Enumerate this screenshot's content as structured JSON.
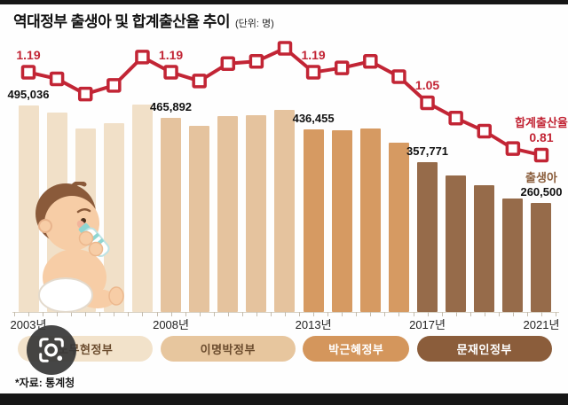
{
  "header": {
    "title": "역대정부 출생아 및 합계출산율 추이",
    "unit_note": "(단위: 명)"
  },
  "chart_data": {
    "type": "bar+line",
    "x": [
      "2003",
      "2004",
      "2005",
      "2006",
      "2007",
      "2008",
      "2009",
      "2010",
      "2011",
      "2012",
      "2013",
      "2014",
      "2015",
      "2016",
      "2017",
      "2018",
      "2019",
      "2020",
      "2021"
    ],
    "series": [
      {
        "name": "출생아",
        "type": "bar",
        "unit": "명",
        "values": [
          495036,
          476958,
          438707,
          451759,
          496822,
          465892,
          444849,
          470171,
          471265,
          484550,
          436455,
          435435,
          438420,
          406243,
          357771,
          326822,
          302676,
          272337,
          260500
        ]
      },
      {
        "name": "합계출산율",
        "type": "line",
        "marker": "open-square",
        "values": [
          1.19,
          1.16,
          1.09,
          1.13,
          1.26,
          1.19,
          1.15,
          1.23,
          1.24,
          1.3,
          1.19,
          1.21,
          1.24,
          1.17,
          1.05,
          0.98,
          0.92,
          0.84,
          0.81
        ]
      }
    ],
    "point_labels": {
      "births": [
        {
          "index": 0,
          "text": "495,036"
        },
        {
          "index": 5,
          "text": "465,892"
        },
        {
          "index": 10,
          "text": "436,455"
        },
        {
          "index": 14,
          "text": "357,771"
        },
        {
          "index": 18,
          "text": "260,500",
          "series_label": "출생아"
        }
      ],
      "rates": [
        {
          "index": 0,
          "text": "1.19"
        },
        {
          "index": 5,
          "text": "1.19"
        },
        {
          "index": 10,
          "text": "1.19"
        },
        {
          "index": 14,
          "text": "1.05"
        },
        {
          "index": 18,
          "text": "0.81",
          "series_label": "합계출산율"
        }
      ]
    },
    "x_tick_labels": [
      {
        "index": 0,
        "text": "2003년"
      },
      {
        "index": 5,
        "text": "2008년"
      },
      {
        "index": 10,
        "text": "2013년"
      },
      {
        "index": 14,
        "text": "2017년"
      },
      {
        "index": 18,
        "text": "2021년"
      }
    ],
    "groups": [
      {
        "label": "노무현정부",
        "start": 0,
        "end": 4,
        "bar_color": "#f1e0c8",
        "pill_color": "#f2e2ca",
        "text_color": "#6b4c2e"
      },
      {
        "label": "이명박정부",
        "start": 5,
        "end": 9,
        "bar_color": "#e5c39e",
        "pill_color": "#e7c69e",
        "text_color": "#6b4c2e"
      },
      {
        "label": "박근혜정부",
        "start": 10,
        "end": 13,
        "bar_color": "#d69a62",
        "pill_color": "#d4965c",
        "text_color": "#ffffff"
      },
      {
        "label": "문재인정부",
        "start": 14,
        "end": 18,
        "bar_color": "#966b4a",
        "pill_color": "#8b5d3b",
        "text_color": "#ffffff"
      }
    ],
    "colors": {
      "line_red": "#c22535",
      "value_label": "#111111",
      "births_name_label": "#8a5d3b"
    },
    "legend_position": "inline-right",
    "grid": false
  },
  "footer": {
    "source": "*자료: 통계청"
  },
  "overlay": {
    "icon": "camera-lens-icon"
  },
  "illustration": {
    "name": "baby-with-bottle"
  }
}
